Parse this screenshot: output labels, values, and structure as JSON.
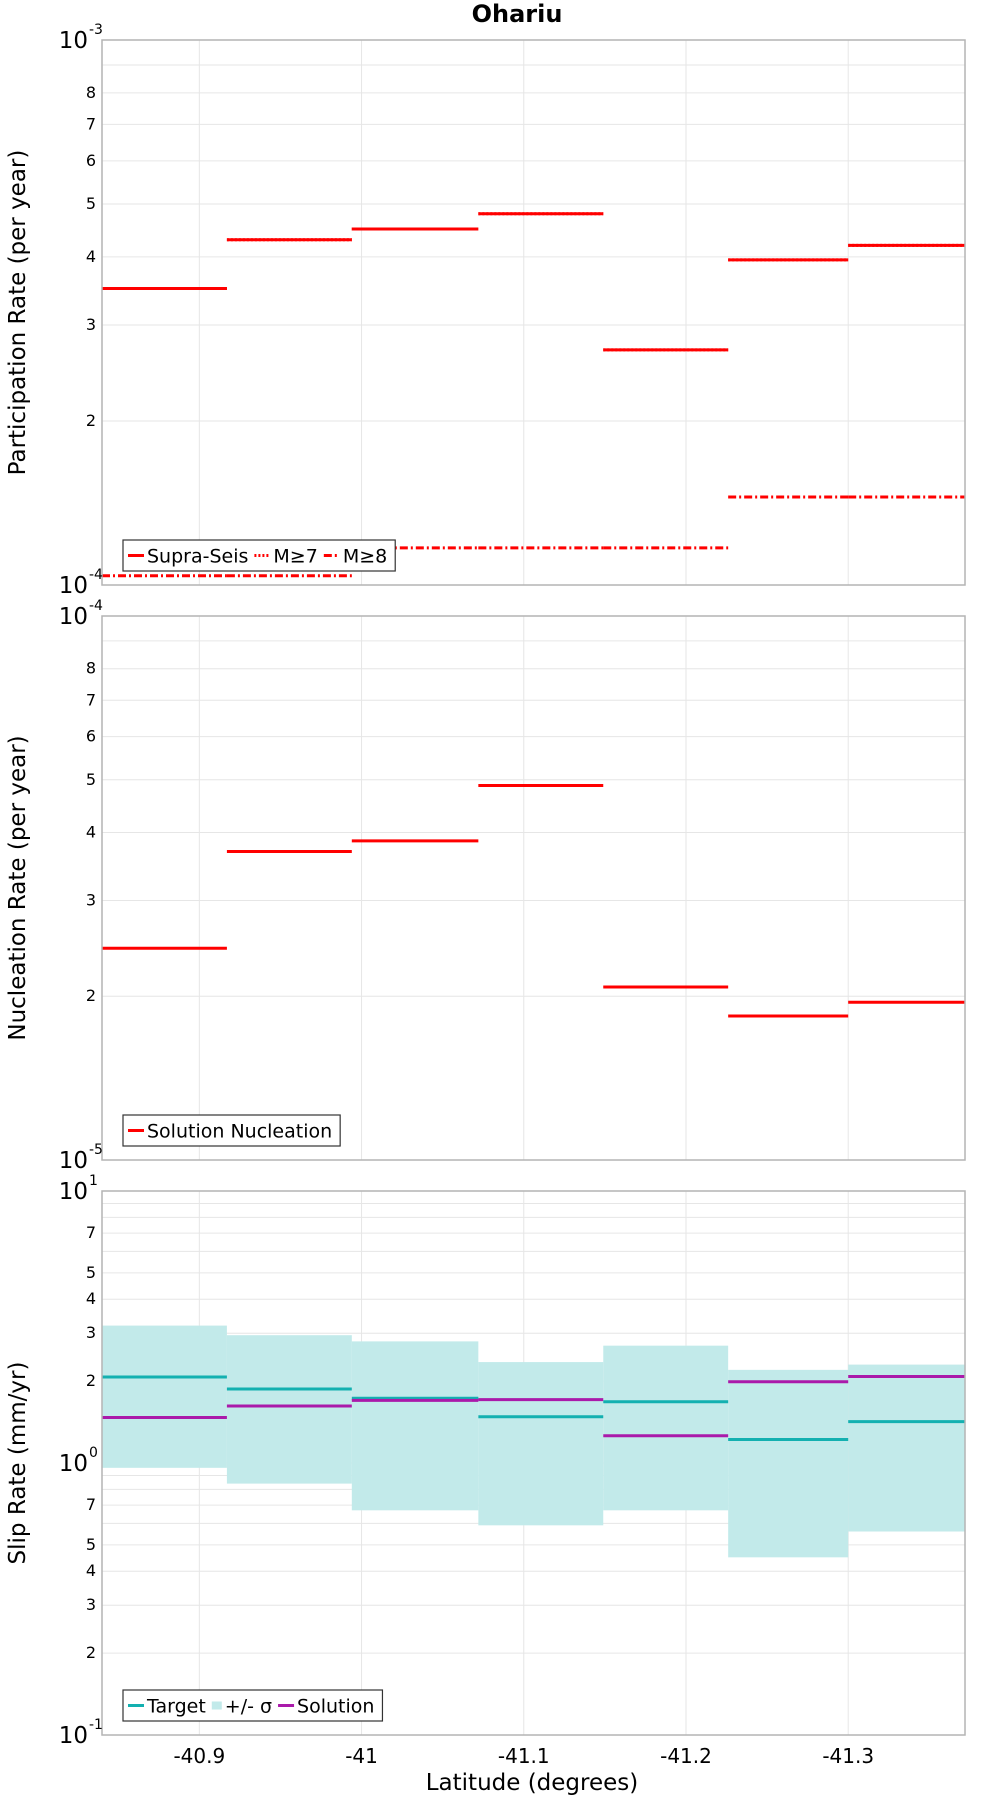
{
  "title": "Ohariu",
  "xlabel": "Latitude (degrees)",
  "xlim": [
    -40.84,
    -41.372
  ],
  "xticks": [
    "-40.9",
    "-41",
    "-41.1",
    "-41.2",
    "-41.3"
  ],
  "xtick_values": [
    -40.9,
    -41.0,
    -41.1,
    -41.2,
    -41.3
  ],
  "colors": {
    "red": "#ff0000",
    "teal": "#13b0b0",
    "band": "#c2eaea",
    "purple": "#aa1aaa",
    "grid": "#e6e6e6",
    "frame": "#b4b4b4"
  },
  "chart_data": [
    {
      "type": "line",
      "ylabel": "Participation Rate (per year)",
      "yscale": "log",
      "ylim": [
        0.0001,
        0.001
      ],
      "ytick_major": [
        {
          "base": "10",
          "exp": "-4"
        },
        {
          "base": "10",
          "exp": "-3"
        }
      ],
      "ytick_minor": [
        "2",
        "3",
        "4",
        "5",
        "6",
        "7",
        "8"
      ],
      "x_edges": [
        -40.84,
        -40.917,
        -40.994,
        -41.072,
        -41.149,
        -41.226,
        -41.3,
        -41.372
      ],
      "series": [
        {
          "name": "Supra-Seis",
          "style": "solid",
          "values": [
            0.00035,
            0.00043,
            0.00045,
            0.00048,
            0.00027,
            0.000395,
            0.00042
          ]
        },
        {
          "name": "M≥7",
          "style": "dotted",
          "values": [
            0.00035,
            0.00043,
            0.00045,
            0.00048,
            0.00027,
            0.000395,
            0.00042
          ]
        },
        {
          "name": "M≥8",
          "style": "dashdot",
          "values": [
            0.000104,
            0.000104,
            0.000117,
            0.000117,
            0.000117,
            0.000145,
            0.000145
          ]
        }
      ],
      "legend": "bottom-left"
    },
    {
      "type": "line",
      "ylabel": "Nucleation Rate (per year)",
      "yscale": "log",
      "ylim": [
        1e-05,
        0.0001
      ],
      "ytick_major": [
        {
          "base": "10",
          "exp": "-5"
        },
        {
          "base": "10",
          "exp": "-4"
        }
      ],
      "ytick_minor": [
        "2",
        "3",
        "4",
        "5",
        "6",
        "7",
        "8"
      ],
      "x_edges": [
        -40.84,
        -40.917,
        -40.994,
        -41.072,
        -41.149,
        -41.226,
        -41.3,
        -41.372
      ],
      "series": [
        {
          "name": "Solution Nucleation",
          "style": "solid",
          "values": [
            2.45e-05,
            3.69e-05,
            3.86e-05,
            4.88e-05,
            2.08e-05,
            1.84e-05,
            1.95e-05
          ]
        }
      ],
      "legend": "bottom-left"
    },
    {
      "type": "line",
      "ylabel": "Slip Rate (mm/yr)",
      "yscale": "log",
      "ylim": [
        0.1,
        10
      ],
      "ytick_major": [
        {
          "base": "10",
          "exp": "-1"
        },
        {
          "base": "10",
          "exp": "0"
        },
        {
          "base": "10",
          "exp": "1"
        }
      ],
      "ytick_minor_decades": [
        {
          "decade": 0.1,
          "labels": [
            "2",
            "3",
            "4",
            "5",
            "7"
          ],
          "values": [
            2,
            3,
            4,
            5,
            7
          ]
        },
        {
          "decade": 1,
          "labels": [
            "2",
            "3",
            "4",
            "5",
            "7"
          ],
          "values": [
            2,
            3,
            4,
            5,
            7
          ]
        }
      ],
      "x_edges": [
        -40.84,
        -40.917,
        -40.994,
        -41.072,
        -41.149,
        -41.226,
        -41.3,
        -41.372
      ],
      "series": [
        {
          "name": "Target",
          "style": "solid",
          "values": [
            2.07,
            1.87,
            1.73,
            1.48,
            1.68,
            1.22,
            1.42
          ]
        },
        {
          "name": "+/- σ",
          "style": "band",
          "lower": [
            0.96,
            0.84,
            0.67,
            0.59,
            0.67,
            0.45,
            0.56
          ],
          "upper": [
            3.2,
            2.95,
            2.8,
            2.35,
            2.7,
            2.2,
            2.3
          ]
        },
        {
          "name": "Solution",
          "style": "solid",
          "values": [
            1.47,
            1.62,
            1.7,
            1.71,
            1.26,
            1.99,
            2.08
          ]
        }
      ],
      "legend": "bottom-left"
    }
  ]
}
